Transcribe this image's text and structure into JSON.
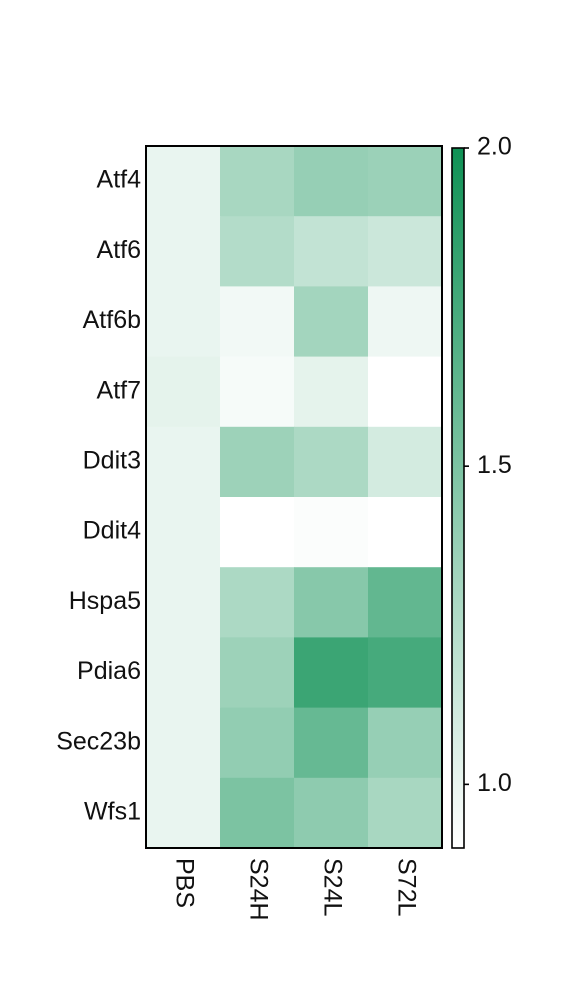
{
  "chart_data": {
    "type": "heatmap",
    "rows": [
      "Atf4",
      "Atf6",
      "Atf6b",
      "Atf7",
      "Ddit3",
      "Ddit4",
      "Hspa5",
      "Pdia6",
      "Sec23b",
      "Wfs1"
    ],
    "columns": [
      "PBS",
      "S24H",
      "S24L",
      "S72L"
    ],
    "values": [
      [
        1.0,
        1.3,
        1.38,
        1.36
      ],
      [
        1.0,
        1.25,
        1.18,
        1.14
      ],
      [
        1.0,
        0.96,
        1.32,
        0.98
      ],
      [
        1.02,
        0.94,
        1.02,
        0.9
      ],
      [
        1.0,
        1.35,
        1.28,
        1.1
      ],
      [
        1.0,
        0.9,
        0.92,
        0.9
      ],
      [
        1.0,
        1.28,
        1.45,
        1.62
      ],
      [
        1.0,
        1.35,
        1.8,
        1.75
      ],
      [
        1.0,
        1.4,
        1.6,
        1.38
      ],
      [
        1.0,
        1.5,
        1.42,
        1.3
      ]
    ],
    "color_scale": {
      "min": 0.9,
      "max": 2.0,
      "low_color": "#ffffff",
      "high_color": "#0f9155",
      "ticks": [
        1.0,
        1.5,
        2.0
      ],
      "tick_labels": [
        "1.0",
        "1.5",
        "2.0"
      ]
    }
  }
}
